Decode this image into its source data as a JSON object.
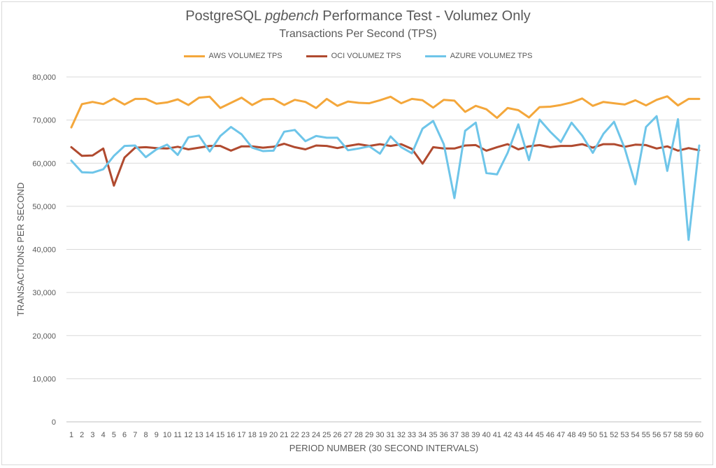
{
  "chart_data": {
    "type": "line",
    "title_main": "PostgreSQL ",
    "title_italic": "pgbench",
    "title_rest": " Performance Test - Volumez Only",
    "subtitle": "Transactions Per Second (TPS)",
    "xlabel": "PERIOD NUMBER (30 SECOND INTERVALS)",
    "ylabel": "TRANSACTIONS PER SECOND",
    "ylim": [
      0,
      80000
    ],
    "ytick_values": [
      0,
      10000,
      20000,
      30000,
      40000,
      50000,
      60000,
      70000,
      80000
    ],
    "ytick_labels": [
      "0",
      "10,000",
      "20,000",
      "30,000",
      "40,000",
      "50,000",
      "60,000",
      "70,000",
      "80,000"
    ],
    "grid": true,
    "legend_position": "top-center",
    "x": [
      1,
      2,
      3,
      4,
      5,
      6,
      7,
      8,
      9,
      10,
      11,
      12,
      13,
      14,
      15,
      16,
      17,
      18,
      19,
      20,
      21,
      22,
      23,
      24,
      25,
      26,
      27,
      28,
      29,
      30,
      31,
      32,
      33,
      34,
      35,
      36,
      37,
      38,
      39,
      40,
      41,
      42,
      43,
      44,
      45,
      46,
      47,
      48,
      49,
      50,
      51,
      52,
      53,
      54,
      55,
      56,
      57,
      58,
      59,
      60
    ],
    "series": [
      {
        "name": "AWS VOLUMEZ TPS",
        "color": "#f4a73b",
        "values": [
          68300,
          73700,
          74200,
          73700,
          75000,
          73600,
          74900,
          74900,
          73800,
          74100,
          74800,
          73500,
          75200,
          75400,
          72800,
          74000,
          75200,
          73500,
          74800,
          74900,
          73500,
          74700,
          74200,
          72800,
          74900,
          73300,
          74300,
          74000,
          73900,
          74600,
          75400,
          73900,
          74900,
          74600,
          72900,
          74700,
          74500,
          71900,
          73300,
          72500,
          70500,
          72800,
          72300,
          70600,
          73000,
          73100,
          73500,
          74100,
          75000,
          73300,
          74200,
          73900,
          73600,
          74600,
          73400,
          74700,
          75500,
          73400,
          74900,
          74900
        ]
      },
      {
        "name": "OCI VOLUMEZ TPS",
        "color": "#b04a2f",
        "values": [
          63700,
          61700,
          61800,
          63400,
          54800,
          61300,
          63600,
          63700,
          63500,
          63400,
          63800,
          63200,
          63600,
          64000,
          64000,
          62900,
          63900,
          63900,
          63600,
          63800,
          64500,
          63700,
          63200,
          64100,
          64000,
          63500,
          64000,
          64400,
          64000,
          64400,
          64000,
          64400,
          63300,
          59900,
          63700,
          63400,
          63400,
          64100,
          64200,
          62900,
          63700,
          64400,
          63200,
          63900,
          64200,
          63700,
          64000,
          64000,
          64400,
          63600,
          64400,
          64400,
          63800,
          64300,
          64200,
          63400,
          63900,
          62900,
          63500,
          63000
        ]
      },
      {
        "name": "AZURE VOLUMEZ TPS",
        "color": "#6ec5e9",
        "values": [
          60600,
          57900,
          57800,
          58600,
          61700,
          64000,
          64100,
          61400,
          63200,
          64300,
          61900,
          66000,
          66400,
          62700,
          66300,
          68400,
          66700,
          63600,
          62800,
          62900,
          67300,
          67700,
          65100,
          66300,
          65900,
          65900,
          63000,
          63400,
          63900,
          62200,
          66200,
          63700,
          62300,
          68000,
          69800,
          64400,
          51900,
          67500,
          69400,
          57700,
          57400,
          62400,
          69000,
          60700,
          70100,
          67300,
          64900,
          69400,
          66400,
          62400,
          66800,
          69600,
          63400,
          55100,
          68400,
          70900,
          58200,
          70200,
          42200,
          64100
        ]
      }
    ]
  }
}
